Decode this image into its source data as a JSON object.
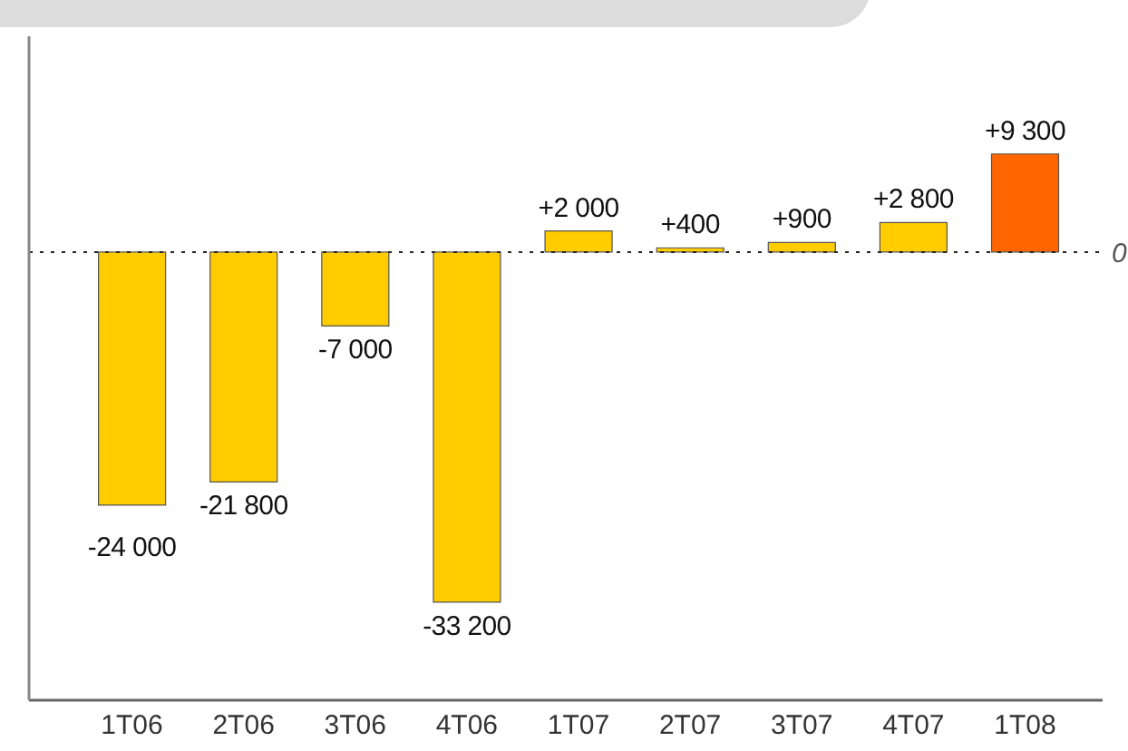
{
  "chart_data": {
    "type": "bar",
    "categories": [
      "1T06",
      "2T06",
      "3T06",
      "4T06",
      "1T07",
      "2T07",
      "3T07",
      "4T07",
      "1T08"
    ],
    "values": [
      -24000,
      -21800,
      -7000,
      -33200,
      2000,
      400,
      900,
      2800,
      9300
    ],
    "colors": [
      "#ffcc00",
      "#ffcc00",
      "#ffcc00",
      "#ffcc00",
      "#ffcc00",
      "#ffcc00",
      "#ffcc00",
      "#ffcc00",
      "#ff6600"
    ],
    "value_labels": [
      "-24 000",
      "-21 800",
      "-7 000",
      "-33 200",
      "+2 000",
      "+400",
      "+900",
      "+2 800",
      "+9 300"
    ],
    "ref_lines": [
      {
        "axis": "y",
        "value": 0,
        "label": "0",
        "line_style": "dotted"
      }
    ],
    "grid": false,
    "legend": false
  }
}
